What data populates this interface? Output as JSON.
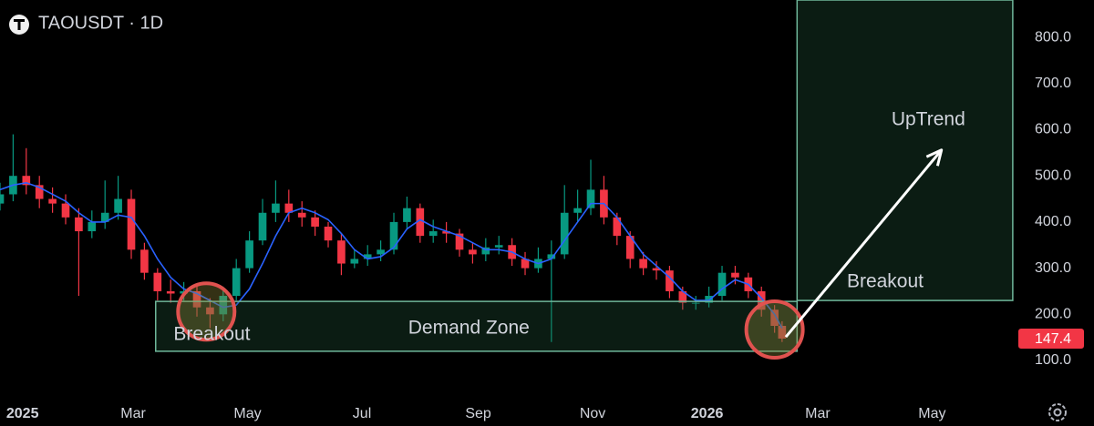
{
  "chart_data": {
    "type": "candlestick",
    "title": "TAOUSDT · 1D",
    "up_color": "#089981",
    "down_color": "#f23645",
    "grid": false,
    "x": [
      -12,
      -5,
      2,
      9,
      16,
      23,
      30,
      37,
      44,
      51,
      58,
      65,
      72,
      79,
      86,
      93,
      100,
      107,
      114,
      121,
      128,
      135,
      142,
      149,
      156,
      163,
      170,
      177,
      184,
      191,
      198,
      205,
      212,
      219,
      226,
      233,
      240,
      247,
      254,
      261,
      268,
      275,
      282,
      289,
      296,
      303,
      310,
      317,
      324,
      331,
      338,
      345,
      352,
      359,
      366,
      373,
      380,
      387,
      394,
      401,
      405
    ],
    "open": [
      440,
      460,
      500,
      480,
      450,
      440,
      410,
      380,
      400,
      420,
      450,
      340,
      290,
      250,
      245,
      250,
      215,
      200,
      240,
      300,
      360,
      420,
      440,
      420,
      410,
      390,
      360,
      310,
      320,
      330,
      340,
      400,
      430,
      370,
      380,
      375,
      340,
      330,
      345,
      350,
      320,
      300,
      320,
      330,
      420,
      430,
      470,
      410,
      370,
      320,
      300,
      295,
      250,
      225,
      225,
      240,
      290,
      280,
      250,
      210,
      175
    ],
    "high": [
      485,
      590,
      560,
      500,
      475,
      460,
      430,
      425,
      490,
      500,
      470,
      355,
      300,
      275,
      270,
      260,
      235,
      260,
      320,
      380,
      450,
      490,
      470,
      445,
      425,
      400,
      375,
      340,
      350,
      360,
      420,
      455,
      440,
      405,
      400,
      385,
      355,
      365,
      370,
      365,
      335,
      345,
      360,
      480,
      470,
      535,
      500,
      420,
      380,
      335,
      315,
      305,
      260,
      240,
      260,
      305,
      305,
      290,
      260,
      220,
      185
    ],
    "low": [
      425,
      445,
      460,
      430,
      420,
      395,
      240,
      365,
      385,
      405,
      320,
      275,
      230,
      225,
      230,
      195,
      170,
      185,
      230,
      290,
      350,
      400,
      400,
      390,
      370,
      345,
      285,
      300,
      305,
      315,
      330,
      385,
      355,
      355,
      355,
      325,
      310,
      315,
      330,
      305,
      285,
      290,
      140,
      320,
      400,
      415,
      395,
      350,
      300,
      285,
      275,
      235,
      210,
      210,
      215,
      230,
      265,
      235,
      195,
      160,
      140
    ],
    "close": [
      460,
      500,
      480,
      450,
      440,
      410,
      380,
      400,
      420,
      450,
      340,
      290,
      250,
      245,
      250,
      215,
      200,
      240,
      300,
      360,
      420,
      440,
      420,
      410,
      390,
      360,
      310,
      320,
      330,
      340,
      400,
      430,
      370,
      380,
      375,
      340,
      330,
      345,
      350,
      320,
      300,
      320,
      330,
      420,
      430,
      470,
      410,
      370,
      320,
      300,
      295,
      250,
      225,
      225,
      240,
      290,
      280,
      250,
      210,
      175,
      147.4
    ],
    "ma": {
      "color": "#2962ff",
      "values": [
        470,
        480,
        485,
        475,
        460,
        445,
        420,
        400,
        400,
        415,
        410,
        370,
        320,
        280,
        255,
        245,
        230,
        215,
        220,
        255,
        310,
        370,
        420,
        430,
        420,
        405,
        375,
        340,
        320,
        325,
        345,
        385,
        405,
        390,
        380,
        370,
        355,
        340,
        340,
        335,
        320,
        310,
        320,
        360,
        400,
        440,
        440,
        410,
        370,
        330,
        305,
        280,
        250,
        230,
        230,
        255,
        275,
        265,
        235,
        200,
        170
      ]
    },
    "xlim": [
      -12,
      530
    ],
    "ylim": [
      33,
      881
    ],
    "xticks": [
      {
        "value": 0,
        "label": "2025"
      },
      {
        "value": 59,
        "label": "Mar"
      },
      {
        "value": 120,
        "label": "May"
      },
      {
        "value": 181,
        "label": "Jul"
      },
      {
        "value": 243,
        "label": "Sep"
      },
      {
        "value": 304,
        "label": "Nov"
      },
      {
        "value": 365,
        "label": "2026"
      },
      {
        "value": 424,
        "label": "Mar"
      },
      {
        "value": 485,
        "label": "May"
      }
    ],
    "yticks": [
      {
        "value": 100,
        "label": "100.0"
      },
      {
        "value": 200,
        "label": "200.0"
      },
      {
        "value": 300,
        "label": "300.0"
      },
      {
        "value": 400,
        "label": "400.0"
      },
      {
        "value": 500,
        "label": "500.0"
      },
      {
        "value": 600,
        "label": "600.0"
      },
      {
        "value": 700,
        "label": "700.0"
      },
      {
        "value": 800,
        "label": "800.0"
      }
    ],
    "last_price": {
      "value": 147.4,
      "color": "#f23645"
    },
    "zones": [
      {
        "x": [
          71,
          413
        ],
        "y": [
          120,
          228
        ],
        "fill": "rgba(40,100,70,0.28)",
        "stroke": "#6fb79a"
      },
      {
        "x": [
          413,
          528
        ],
        "y": [
          230,
          881
        ],
        "fill": "rgba(40,100,70,0.28)",
        "stroke": "#6fb79a"
      }
    ],
    "circles": [
      {
        "x": 98,
        "y": 206,
        "color": "#e0524f"
      },
      {
        "x": 401,
        "y": 167,
        "color": "#e0524f"
      }
    ],
    "arrow": {
      "x": [
        407,
        490
      ],
      "y": [
        151,
        556
      ],
      "color": "#ffffff"
    },
    "annotations": [
      {
        "text": "Breakout",
        "x": 101,
        "y": 155
      },
      {
        "text": "Demand Zone",
        "x": 238,
        "y": 169
      },
      {
        "text": "Breakout",
        "x": 460,
        "y": 270
      },
      {
        "text": "UpTrend",
        "x": 483,
        "y": 621
      }
    ]
  }
}
